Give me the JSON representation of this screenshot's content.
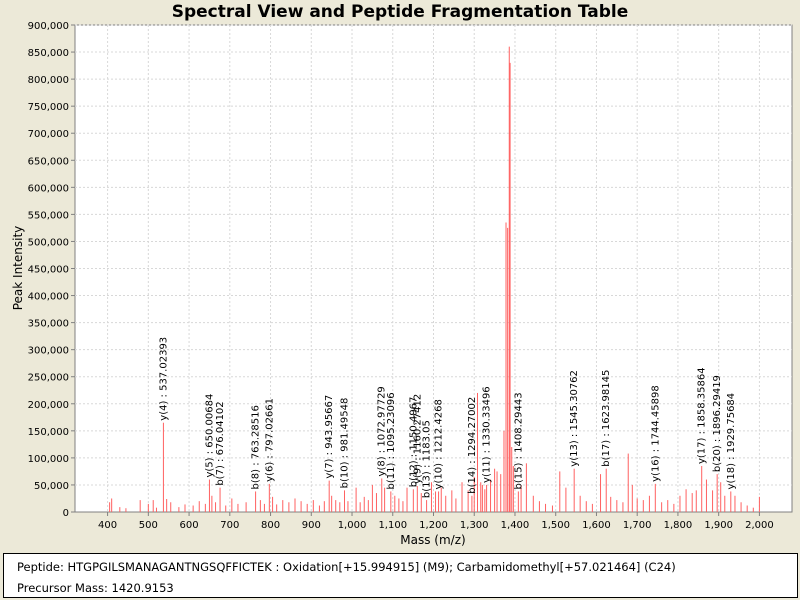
{
  "chart_data": {
    "type": "bar",
    "title": "Spectral View and Peptide Fragmentation Table",
    "xlabel": "Mass (m/z)",
    "ylabel": "Peak Intensity",
    "xlim": [
      320,
      2080
    ],
    "ylim": [
      0,
      900000
    ],
    "xticks": [
      400,
      500,
      600,
      700,
      800,
      900,
      1000,
      1100,
      1200,
      1300,
      1400,
      1500,
      1600,
      1700,
      1800,
      1900,
      2000
    ],
    "xtick_labels": [
      "400",
      "500",
      "600",
      "700",
      "800",
      "900",
      "1,000",
      "1,100",
      "1,200",
      "1,300",
      "1,400",
      "1,500",
      "1,600",
      "1,700",
      "1,800",
      "1,900",
      "2,000"
    ],
    "yticks": [
      0,
      50000,
      100000,
      150000,
      200000,
      250000,
      300000,
      350000,
      400000,
      450000,
      500000,
      550000,
      600000,
      650000,
      700000,
      750000,
      800000,
      850000,
      900000
    ],
    "ytick_labels": [
      "0",
      "50,000",
      "100,000",
      "150,000",
      "200,000",
      "250,000",
      "300,000",
      "350,000",
      "400,000",
      "450,000",
      "500,000",
      "550,000",
      "600,000",
      "650,000",
      "700,000",
      "750,000",
      "800,000",
      "850,000",
      "900,000"
    ],
    "grid": true,
    "peak_color": "#ff6060",
    "peaks": [
      [
        405,
        18000
      ],
      [
        410,
        25000
      ],
      [
        430,
        9000
      ],
      [
        445,
        7000
      ],
      [
        480,
        22000
      ],
      [
        500,
        15000
      ],
      [
        512,
        22000
      ],
      [
        520,
        8000
      ],
      [
        537.02,
        165000
      ],
      [
        545,
        24000
      ],
      [
        555,
        18000
      ],
      [
        575,
        9000
      ],
      [
        590,
        14000
      ],
      [
        610,
        12000
      ],
      [
        625,
        20000
      ],
      [
        640,
        15000
      ],
      [
        650.01,
        60000
      ],
      [
        656,
        30000
      ],
      [
        665,
        18000
      ],
      [
        676.04,
        45000
      ],
      [
        690,
        12000
      ],
      [
        705,
        25000
      ],
      [
        720,
        15000
      ],
      [
        740,
        18000
      ],
      [
        763.29,
        38000
      ],
      [
        775,
        22000
      ],
      [
        785,
        15000
      ],
      [
        797.03,
        52000
      ],
      [
        805,
        28000
      ],
      [
        815,
        14000
      ],
      [
        830,
        22000
      ],
      [
        845,
        18000
      ],
      [
        860,
        25000
      ],
      [
        875,
        20000
      ],
      [
        890,
        15000
      ],
      [
        905,
        22000
      ],
      [
        920,
        12000
      ],
      [
        932,
        20000
      ],
      [
        943.96,
        58000
      ],
      [
        950,
        30000
      ],
      [
        960,
        22000
      ],
      [
        970,
        18000
      ],
      [
        981.5,
        40000
      ],
      [
        990,
        20000
      ],
      [
        1010,
        45000
      ],
      [
        1020,
        18000
      ],
      [
        1030,
        28000
      ],
      [
        1040,
        22000
      ],
      [
        1050,
        50000
      ],
      [
        1060,
        35000
      ],
      [
        1072.98,
        62000
      ],
      [
        1080,
        45000
      ],
      [
        1095.24,
        38000
      ],
      [
        1105,
        30000
      ],
      [
        1115,
        25000
      ],
      [
        1125,
        20000
      ],
      [
        1135,
        45000
      ],
      [
        1150.5,
        42000
      ],
      [
        1160.27,
        48000
      ],
      [
        1170,
        35000
      ],
      [
        1183.05,
        22000
      ],
      [
        1195,
        55000
      ],
      [
        1205,
        38000
      ],
      [
        1212.43,
        38000
      ],
      [
        1219,
        45000
      ],
      [
        1230,
        30000
      ],
      [
        1245,
        40000
      ],
      [
        1255,
        25000
      ],
      [
        1270,
        55000
      ],
      [
        1285,
        40000
      ],
      [
        1294.27,
        30000
      ],
      [
        1300,
        65000
      ],
      [
        1308,
        220000
      ],
      [
        1316,
        55000
      ],
      [
        1320,
        50000
      ],
      [
        1326,
        42000
      ],
      [
        1330.33,
        50000
      ],
      [
        1340,
        60000
      ],
      [
        1350,
        80000
      ],
      [
        1356,
        75000
      ],
      [
        1365,
        70000
      ],
      [
        1373,
        150000
      ],
      [
        1378,
        535000
      ],
      [
        1382,
        525000
      ],
      [
        1386,
        860000
      ],
      [
        1388,
        830000
      ],
      [
        1392,
        120000
      ],
      [
        1396,
        85000
      ],
      [
        1408.29,
        38000
      ],
      [
        1415,
        50000
      ],
      [
        1428,
        90000
      ],
      [
        1445,
        30000
      ],
      [
        1460,
        20000
      ],
      [
        1475,
        15000
      ],
      [
        1492,
        12000
      ],
      [
        1510,
        75000
      ],
      [
        1525,
        45000
      ],
      [
        1545.31,
        80000
      ],
      [
        1560,
        30000
      ],
      [
        1575,
        20000
      ],
      [
        1590,
        15000
      ],
      [
        1610,
        70000
      ],
      [
        1623.98,
        80000
      ],
      [
        1635,
        28000
      ],
      [
        1650,
        22000
      ],
      [
        1665,
        18000
      ],
      [
        1678,
        108000
      ],
      [
        1688,
        50000
      ],
      [
        1700,
        25000
      ],
      [
        1715,
        22000
      ],
      [
        1730,
        30000
      ],
      [
        1744.46,
        52000
      ],
      [
        1760,
        18000
      ],
      [
        1775,
        22000
      ],
      [
        1790,
        15000
      ],
      [
        1805,
        30000
      ],
      [
        1820,
        42000
      ],
      [
        1835,
        35000
      ],
      [
        1845,
        40000
      ],
      [
        1858.36,
        85000
      ],
      [
        1870,
        60000
      ],
      [
        1885,
        40000
      ],
      [
        1896.29,
        70000
      ],
      [
        1905,
        55000
      ],
      [
        1915,
        30000
      ],
      [
        1929.76,
        38000
      ],
      [
        1940,
        30000
      ],
      [
        1955,
        18000
      ],
      [
        1970,
        12000
      ],
      [
        1985,
        8000
      ],
      [
        2000,
        28000
      ]
    ],
    "annotations": [
      {
        "label": "y(4) : 537.02393",
        "mz": 537.02393,
        "intensity": 165000
      },
      {
        "label": "y(5) : 650.00684",
        "mz": 650.00684,
        "intensity": 60000
      },
      {
        "label": "b(7) : 676.04102",
        "mz": 676.04102,
        "intensity": 45000
      },
      {
        "label": "b(8) : 763.28516",
        "mz": 763.28516,
        "intensity": 38000
      },
      {
        "label": "y(6) : 797.02661",
        "mz": 797.02661,
        "intensity": 52000
      },
      {
        "label": "y(7) : 943.95667",
        "mz": 943.95667,
        "intensity": 58000
      },
      {
        "label": "b(10) : 981.49548",
        "mz": 981.49548,
        "intensity": 40000
      },
      {
        "label": "y(8) : 1072.97729",
        "mz": 1072.97729,
        "intensity": 62000
      },
      {
        "label": "b(11) : 1095.23096",
        "mz": 1095.23096,
        "intensity": 38000
      },
      {
        "label": "b(12) : 1150.4967",
        "mz": 1150.4967,
        "intensity": 42000
      },
      {
        "label": "y(9) : 1160.27412",
        "mz": 1160.27412,
        "intensity": 48000
      },
      {
        "label": "b(13) : 1183.05",
        "mz": 1183.05,
        "intensity": 22000
      },
      {
        "label": "y(10) : 1212.4268",
        "mz": 1212.4268,
        "intensity": 38000
      },
      {
        "label": "b(14) : 1294.27002",
        "mz": 1294.27002,
        "intensity": 30000
      },
      {
        "label": "y(11) : 1330.33496",
        "mz": 1330.33496,
        "intensity": 50000
      },
      {
        "label": "b(15) : 1408.29443",
        "mz": 1408.29443,
        "intensity": 38000
      },
      {
        "label": "y(13) : 1545.30762",
        "mz": 1545.30762,
        "intensity": 80000
      },
      {
        "label": "b(17) : 1623.98145",
        "mz": 1623.98145,
        "intensity": 80000
      },
      {
        "label": "y(16) : 1744.45898",
        "mz": 1744.45898,
        "intensity": 52000
      },
      {
        "label": "y(17) : 1858.35864",
        "mz": 1858.35864,
        "intensity": 85000
      },
      {
        "label": "b(20) : 1896.29419",
        "mz": 1896.29419,
        "intensity": 70000
      },
      {
        "label": "y(18) : 1929.75684",
        "mz": 1929.75684,
        "intensity": 38000
      }
    ]
  },
  "info": {
    "peptide": "Peptide: HTGPGILSMANAGANTNGSQFFICTEK : Oxidation[+15.994915] (M9); Carbamidomethyl[+57.021464] (C24)",
    "precursor": "Precursor Mass: 1420.9153"
  }
}
